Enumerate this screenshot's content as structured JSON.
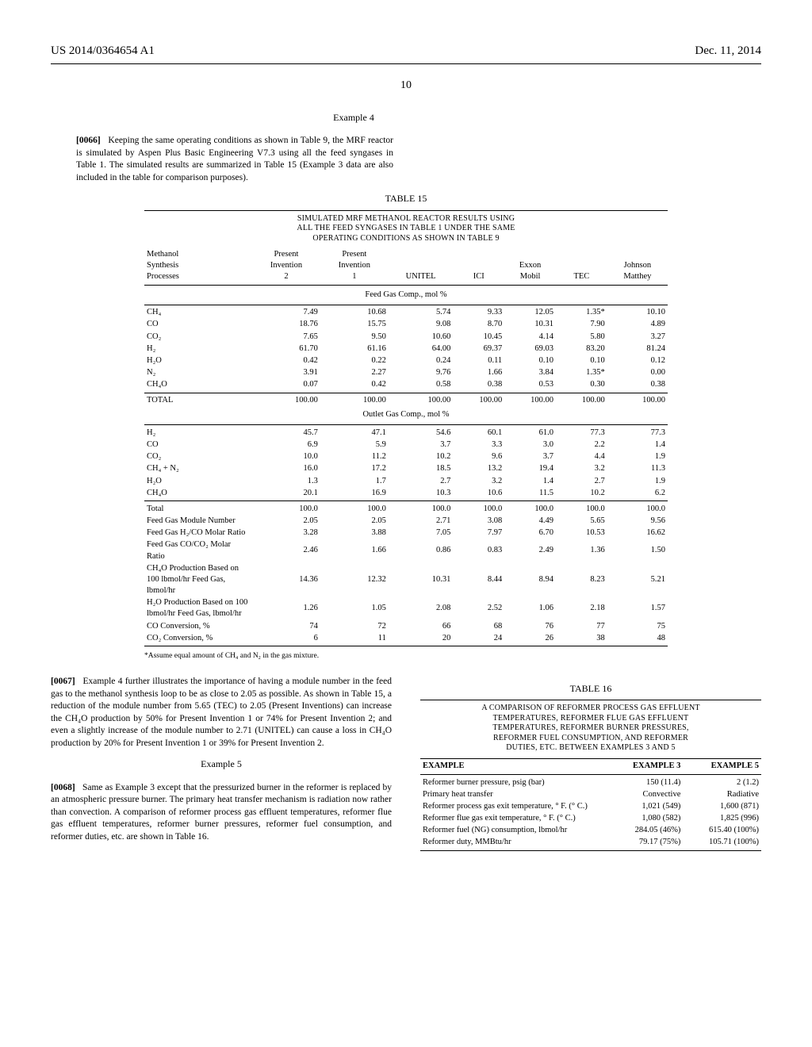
{
  "header": {
    "left": "US 2014/0364654 A1",
    "right": "Dec. 11, 2014",
    "page_number": "10"
  },
  "ex4": {
    "heading": "Example 4",
    "para_num": "[0066]",
    "text": "Keeping the same operating conditions as shown in Table 9, the MRF reactor is simulated by Aspen Plus Basic Engineering V7.3 using all the feed syngases in Table 1. The simulated results are summarized in Table 15 (Example 3 data are also included in the table for comparison purposes)."
  },
  "t15": {
    "caption": "TABLE 15",
    "title_lines": [
      "SIMULATED MRF METHANOL REACTOR RESULTS USING",
      "ALL THE FEED SYNGASES IN TABLE 1 UNDER THE SAME",
      "OPERATING CONDITIONS AS SHOWN IN TABLE 9"
    ],
    "col_heads": {
      "left_lines": [
        "Methanol",
        "Synthesis",
        "Processes"
      ],
      "others": [
        [
          "Present",
          "Invention",
          "2"
        ],
        [
          "Present",
          "Invention",
          "1"
        ],
        [
          "",
          "",
          "UNITEL"
        ],
        [
          "",
          "",
          "ICI"
        ],
        [
          "",
          "Exxon",
          "Mobil"
        ],
        [
          "",
          "",
          "TEC"
        ],
        [
          "",
          "Johnson",
          "Matthey"
        ]
      ]
    },
    "feed_section": "Feed Gas Comp., mol %",
    "feed_rows": [
      [
        "CH₄",
        "7.49",
        "10.68",
        "5.74",
        "9.33",
        "12.05",
        "1.35*",
        "10.10"
      ],
      [
        "CO",
        "18.76",
        "15.75",
        "9.08",
        "8.70",
        "10.31",
        "7.90",
        "4.89"
      ],
      [
        "CO₂",
        "7.65",
        "9.50",
        "10.60",
        "10.45",
        "4.14",
        "5.80",
        "3.27"
      ],
      [
        "H₂",
        "61.70",
        "61.16",
        "64.00",
        "69.37",
        "69.03",
        "83.20",
        "81.24"
      ],
      [
        "H₂O",
        "0.42",
        "0.22",
        "0.24",
        "0.11",
        "0.10",
        "0.10",
        "0.12"
      ],
      [
        "N₂",
        "3.91",
        "2.27",
        "9.76",
        "1.66",
        "3.84",
        "1.35*",
        "0.00"
      ],
      [
        "CH₄O",
        "0.07",
        "0.42",
        "0.58",
        "0.38",
        "0.53",
        "0.30",
        "0.38"
      ]
    ],
    "feed_total": [
      "TOTAL",
      "100.00",
      "100.00",
      "100.00",
      "100.00",
      "100.00",
      "100.00",
      "100.00"
    ],
    "outlet_section": "Outlet Gas Comp., mol %",
    "outlet_rows": [
      [
        "H₂",
        "45.7",
        "47.1",
        "54.6",
        "60.1",
        "61.0",
        "77.3",
        "77.3"
      ],
      [
        "CO",
        "6.9",
        "5.9",
        "3.7",
        "3.3",
        "3.0",
        "2.2",
        "1.4"
      ],
      [
        "CO₂",
        "10.0",
        "11.2",
        "10.2",
        "9.6",
        "3.7",
        "4.4",
        "1.9"
      ],
      [
        "CH₄ + N₂",
        "16.0",
        "17.2",
        "18.5",
        "13.2",
        "19.4",
        "3.2",
        "11.3"
      ],
      [
        "H₂O",
        "1.3",
        "1.7",
        "2.7",
        "3.2",
        "1.4",
        "2.7",
        "1.9"
      ],
      [
        "CH₄O",
        "20.1",
        "16.9",
        "10.3",
        "10.6",
        "11.5",
        "10.2",
        "6.2"
      ]
    ],
    "summary_rows": [
      [
        "Total",
        "100.0",
        "100.0",
        "100.0",
        "100.0",
        "100.0",
        "100.0",
        "100.0"
      ],
      [
        "Feed Gas Module Number",
        "2.05",
        "2.05",
        "2.71",
        "3.08",
        "4.49",
        "5.65",
        "9.56"
      ],
      [
        "Feed Gas H₂/CO Molar Ratio",
        "3.28",
        "3.88",
        "7.05",
        "7.97",
        "6.70",
        "10.53",
        "16.62"
      ],
      [
        "Feed Gas CO/CO₂ Molar Ratio",
        "2.46",
        "1.66",
        "0.86",
        "0.83",
        "2.49",
        "1.36",
        "1.50"
      ],
      [
        "CH₄O Production Based on 100 lbmol/hr Feed Gas, lbmol/hr",
        "14.36",
        "12.32",
        "10.31",
        "8.44",
        "8.94",
        "8.23",
        "5.21"
      ],
      [
        "H₂O Production Based on 100 lbmol/hr Feed Gas, lbmol/hr",
        "1.26",
        "1.05",
        "2.08",
        "2.52",
        "1.06",
        "2.18",
        "1.57"
      ],
      [
        "CO Conversion, %",
        "74",
        "72",
        "66",
        "68",
        "76",
        "77",
        "75"
      ],
      [
        "CO₂ Conversion, %",
        "6",
        "11",
        "20",
        "24",
        "26",
        "38",
        "48"
      ]
    ],
    "footnote": "*Assume equal amount of CH₄ and N₂ in the gas mixture."
  },
  "p67": {
    "para_num": "[0067]",
    "text": "Example 4 further illustrates the importance of having a module number in the feed gas to the methanol synthesis loop to be as close to 2.05 as possible. As shown in Table 15, a reduction of the module number from 5.65 (TEC) to 2.05 (Present Inventions) can increase the CH₄O production by 50% for Present Invention 1 or 74% for Present Invention 2; and even a slightly increase of the module number to 2.71 (UNITEL) can cause a loss in CH₄O production by 20% for Present Invention 1 or 39% for Present Invention 2."
  },
  "ex5": {
    "heading": "Example 5",
    "para_num": "[0068]",
    "text": "Same as Example 3 except that the pressurized burner in the reformer is replaced by an atmospheric pressure burner. The primary heat transfer mechanism is radiation now rather than convection. A comparison of reformer process gas effluent temperatures, reformer flue gas effluent temperatures, reformer burner pressures, reformer fuel consumption, and reformer duties, etc. are shown in Table 16."
  },
  "t16": {
    "caption": "TABLE 16",
    "title_lines": [
      "A COMPARISON OF REFORMER PROCESS GAS EFFLUENT",
      "TEMPERATURES, REFORMER FLUE GAS EFFLUENT",
      "TEMPERATURES, REFORMER BURNER PRESSURES,",
      "REFORMER FUEL CONSUMPTION, AND REFORMER",
      "DUTIES, ETC. BETWEEN EXAMPLES 3 AND 5"
    ],
    "head": [
      "EXAMPLE",
      "EXAMPLE 3",
      "EXAMPLE 5"
    ],
    "rows": [
      [
        "Reformer burner pressure, psig (bar)",
        "150 (11.4)",
        "2 (1.2)"
      ],
      [
        "Primary heat transfer",
        "Convective",
        "Radiative"
      ],
      [
        "Reformer process gas exit temperature, ° F. (° C.)",
        "1,021 (549)",
        "1,600 (871)"
      ],
      [
        "Reformer flue gas exit temperature, ° F. (° C.)",
        "1,080 (582)",
        "1,825 (996)"
      ],
      [
        "Reformer fuel (NG) consumption, lbmol/hr",
        "284.05 (46%)",
        "615.40 (100%)"
      ],
      [
        "Reformer duty, MMBtu/hr",
        "79.17 (75%)",
        "105.71 (100%)"
      ]
    ]
  }
}
